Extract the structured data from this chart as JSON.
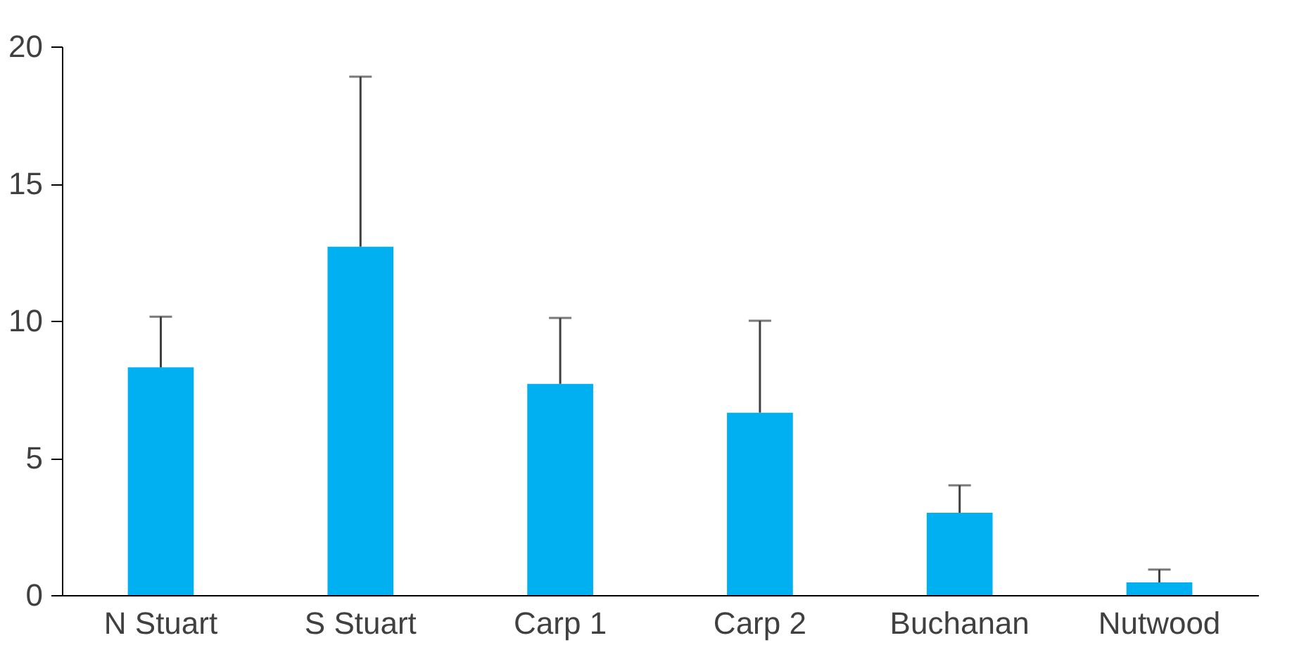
{
  "chart_data": {
    "type": "bar",
    "categories": [
      "N Stuart",
      "S Stuart",
      "Carp 1",
      "Carp 2",
      "Buchanan",
      "Nutwood"
    ],
    "values": [
      8.3,
      12.7,
      7.7,
      6.65,
      3.0,
      0.46
    ],
    "errors": [
      [
        8.3,
        10.15
      ],
      [
        12.7,
        18.9
      ],
      [
        7.7,
        10.1
      ],
      [
        6.65,
        10.0
      ],
      [
        3.0,
        4.0
      ],
      [
        0.46,
        0.93
      ]
    ],
    "color": "#00b0f0",
    "ylim": [
      0,
      20
    ],
    "yticks": [
      0,
      5,
      10,
      15,
      20
    ],
    "grid": false
  }
}
